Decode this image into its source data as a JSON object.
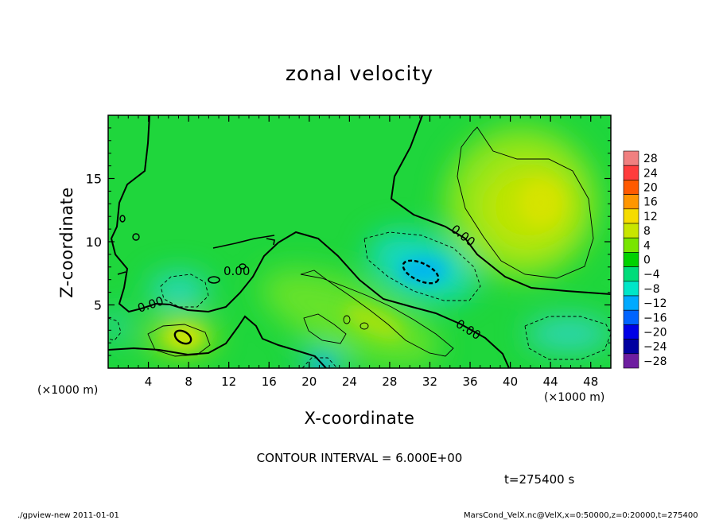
{
  "chart_data": {
    "type": "heatmap",
    "title": "zonal velocity",
    "xlabel": "X-coordinate",
    "ylabel": "Z-coordinate",
    "x_unit": "(×1000 m)",
    "y_unit": "",
    "xlim": [
      0,
      50
    ],
    "ylim": [
      0,
      20
    ],
    "x_ticks": [
      4,
      8,
      12,
      16,
      20,
      24,
      28,
      32,
      36,
      40,
      44,
      48
    ],
    "y_ticks": [
      5,
      10,
      15
    ],
    "colorbar": {
      "levels": [
        28,
        24,
        20,
        16,
        12,
        8,
        4,
        0,
        -4,
        -8,
        -12,
        -16,
        -20,
        -24,
        -28
      ],
      "colors": [
        "#f08080",
        "#ff3c3c",
        "#ff5a00",
        "#ff9600",
        "#f5dc00",
        "#c8e600",
        "#78e600",
        "#00d200",
        "#00dc7a",
        "#00e6c8",
        "#00aaff",
        "#0064ff",
        "#0000e6",
        "#0000a0",
        "#6e1ea0"
      ]
    },
    "contour_interval_label": "CONTOUR INTERVAL = 6.000E+00",
    "contour_labels": [
      "0.00",
      "0.00",
      "0.00",
      "0.00"
    ],
    "features": [
      {
        "x": 7,
        "z": 2.5,
        "value": 12,
        "kind": "max"
      },
      {
        "x": 43,
        "z": 12,
        "value": 10,
        "kind": "max"
      },
      {
        "x": 30.5,
        "z": 7.8,
        "value": -10,
        "kind": "min"
      },
      {
        "x": 44,
        "z": 2.8,
        "value": -6,
        "kind": "min"
      },
      {
        "x": 7,
        "z": 6,
        "value": -6,
        "kind": "min"
      },
      {
        "x": 21,
        "z": 0.5,
        "value": -8,
        "kind": "min"
      }
    ],
    "time_label": "t=275400  s"
  },
  "footer": {
    "left": "./gpview-new   2011-01-01",
    "right": "MarsCond_VelX.nc@VelX,x=0:50000,z=0:20000,t=275400"
  }
}
